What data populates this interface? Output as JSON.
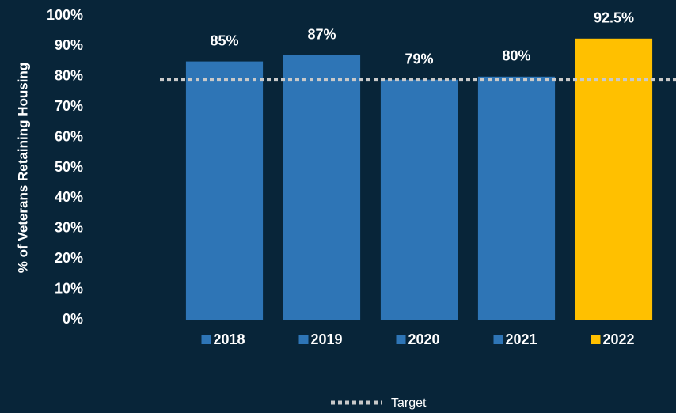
{
  "chart_data": {
    "type": "bar",
    "y_axis_label": "% of Veterans Retaining Housing",
    "categories": [
      "2018",
      "2019",
      "2020",
      "2021",
      "2022"
    ],
    "values": [
      85,
      87,
      79,
      80,
      92.5
    ],
    "value_labels": [
      "85%",
      "87%",
      "79%",
      "80%",
      "92.5%"
    ],
    "colors": [
      "#2e75b6",
      "#2e75b6",
      "#2e75b6",
      "#2e75b6",
      "#ffc000"
    ],
    "target": {
      "name": "Target",
      "value": 79,
      "color": "#c9c9c9"
    },
    "ylim": [
      0,
      100
    ],
    "yticks": [
      {
        "value": 0,
        "label": "0%"
      },
      {
        "value": 10,
        "label": "10%"
      },
      {
        "value": 20,
        "label": "20%"
      },
      {
        "value": 30,
        "label": "30%"
      },
      {
        "value": 40,
        "label": "40%"
      },
      {
        "value": 50,
        "label": "50%"
      },
      {
        "value": 60,
        "label": "60%"
      },
      {
        "value": 70,
        "label": "70%"
      },
      {
        "value": 80,
        "label": "80%"
      },
      {
        "value": 90,
        "label": "90%"
      },
      {
        "value": 100,
        "label": "100%"
      }
    ],
    "grid": false
  }
}
